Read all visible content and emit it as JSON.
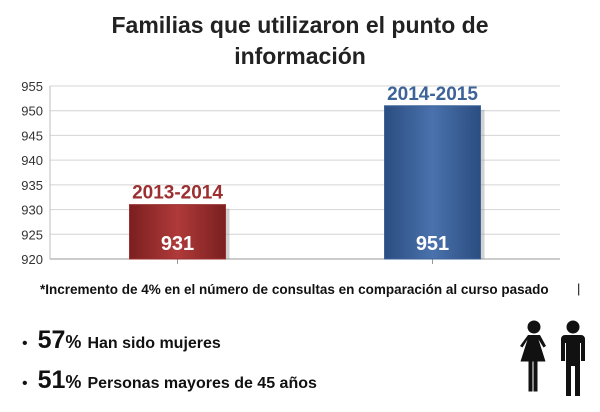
{
  "title_line1": "Familias que utilizaron el punto de",
  "title_line2": "información",
  "chart_data": {
    "type": "bar",
    "categories": [
      "2013-2014",
      "2014-2015"
    ],
    "values": [
      931,
      951
    ],
    "ylim": [
      920,
      955
    ],
    "yticks": [
      920,
      925,
      930,
      935,
      940,
      945,
      950,
      955
    ],
    "grid": true,
    "colors": [
      "#9c2f2f",
      "#3d6399"
    ],
    "category_label_colors": [
      "#9c2f2f",
      "#3d6399"
    ]
  },
  "footnote": "*Incremento de 4% en el número de consultas en comparación al curso pasado",
  "footnote_mark": "|",
  "stats": [
    {
      "bullet": "•",
      "value": "57",
      "unit": "%",
      "text": "Han sido mujeres"
    },
    {
      "bullet": "•",
      "value": "51",
      "unit": "%",
      "text": "Personas mayores de 45 años"
    }
  ],
  "icons": {
    "people": "woman-man-icon"
  }
}
